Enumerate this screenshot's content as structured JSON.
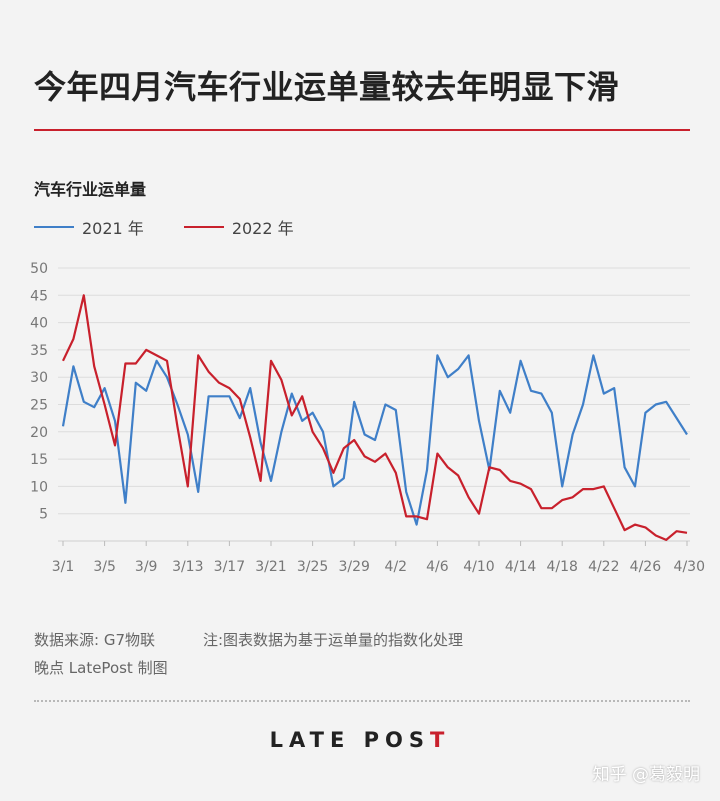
{
  "header": {
    "title": "今年四月汽车行业运单量较去年明显下滑"
  },
  "footer": {
    "source": "数据来源: G7物联",
    "note": "注:图表数据为基于运单量的指数化处理",
    "credit": "晚点 LatePost 制图",
    "logo": "LATE POST",
    "watermark": "知乎 @葛毅明"
  },
  "colors": {
    "series_2021": "#3f7fc8",
    "series_2022": "#c8202c",
    "accent": "#c8202c",
    "grid": "#dcdcdc"
  },
  "chart_data": {
    "type": "line",
    "title": "今年四月汽车行业运单量较去年明显下滑",
    "ylabel": "汽车行业运单量",
    "xlabel": "",
    "ylim": [
      0,
      50
    ],
    "yticks": [
      5,
      10,
      15,
      20,
      25,
      30,
      35,
      40,
      45,
      50
    ],
    "grid": true,
    "legend_position": "top-left",
    "x_ticks": [
      {
        "index": 0,
        "label": "3/1"
      },
      {
        "index": 4,
        "label": "3/5"
      },
      {
        "index": 8,
        "label": "3/9"
      },
      {
        "index": 12,
        "label": "3/13"
      },
      {
        "index": 16,
        "label": "3/17"
      },
      {
        "index": 20,
        "label": "3/21"
      },
      {
        "index": 24,
        "label": "3/25"
      },
      {
        "index": 28,
        "label": "3/29"
      },
      {
        "index": 32,
        "label": "4/2"
      },
      {
        "index": 36,
        "label": "4/6"
      },
      {
        "index": 40,
        "label": "4/10"
      },
      {
        "index": 44,
        "label": "4/14"
      },
      {
        "index": 48,
        "label": "4/18"
      },
      {
        "index": 52,
        "label": "4/22"
      },
      {
        "index": 56,
        "label": "4/26"
      },
      {
        "index": 60,
        "label": "4/30"
      }
    ],
    "series": [
      {
        "name": "2021 年",
        "values": [
          21,
          32,
          25.5,
          24.5,
          28,
          22,
          7,
          29,
          27.5,
          33,
          30,
          25,
          19.5,
          9,
          26.5,
          26.5,
          26.5,
          22.5,
          28,
          18,
          11,
          20,
          27,
          22,
          23.5,
          20,
          10,
          11.5,
          25.5,
          19.5,
          18.5,
          25,
          24,
          9,
          3,
          13,
          34,
          30,
          31.5,
          34,
          22,
          13,
          27.5,
          23.5,
          33,
          27.5,
          27,
          23.5,
          10,
          19.5,
          25,
          34,
          27,
          28,
          13.5,
          10,
          23.5,
          25,
          25.5,
          22.5,
          19.5
        ]
      },
      {
        "name": "2022 年",
        "values": [
          33,
          37,
          45,
          32,
          25,
          17.5,
          32.5,
          32.5,
          35,
          34,
          33,
          21,
          10,
          34,
          31,
          29,
          28,
          26,
          19,
          11,
          33,
          29.5,
          23,
          26.5,
          20,
          17,
          12.5,
          17,
          18.5,
          15.5,
          14.5,
          16,
          12.5,
          4.5,
          4.5,
          4,
          16,
          13.5,
          12,
          8,
          5,
          13.5,
          13,
          11,
          10.5,
          9.5,
          6,
          6,
          7.5,
          8,
          9.5,
          9.5,
          10,
          6,
          2,
          3,
          2.5,
          1,
          0.2,
          1.8,
          1.5
        ]
      }
    ]
  }
}
